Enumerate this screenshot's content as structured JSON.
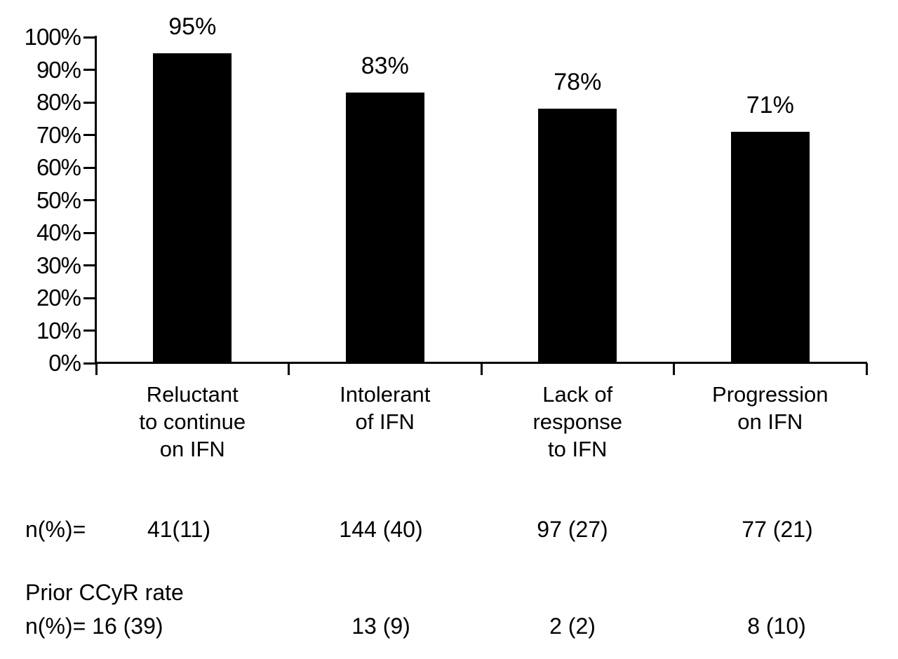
{
  "figure": {
    "background": "#ffffff",
    "bar_color": "#000000",
    "axis_color": "#000000",
    "text_color": "#000000"
  },
  "chart_data": {
    "type": "bar",
    "title": "",
    "xlabel": "",
    "ylabel": "",
    "categories": [
      "Reluctant to continue on IFN",
      "Intolerant of IFN",
      "Lack of response to IFN",
      "Progression on IFN"
    ],
    "category_lines": [
      [
        "Reluctant",
        "to continue",
        "on IFN"
      ],
      [
        "Intolerant",
        "of IFN"
      ],
      [
        "Lack of",
        "response",
        "to IFN"
      ],
      [
        "Progression",
        "on IFN"
      ]
    ],
    "values": [
      95,
      83,
      78,
      71
    ],
    "bar_labels": [
      "95%",
      "83%",
      "78%",
      "71%"
    ],
    "y_ticks": [
      "0%",
      "10%",
      "20%",
      "30%",
      "40%",
      "50%",
      "60%",
      "70%",
      "80%",
      "90%",
      "100%"
    ],
    "ylim": [
      0,
      100
    ],
    "grid": false,
    "legend": false,
    "annotation_rows": [
      {
        "label": "n(%)=",
        "values": [
          "41(11)",
          "144 (40)",
          "97 (27)",
          "77 (21)"
        ]
      },
      {
        "label_line1": "Prior CCyR rate",
        "label_line2": "n(%)=",
        "values": [
          "16 (39)",
          "13 (9)",
          "2 (2)",
          "8 (10)"
        ]
      }
    ]
  }
}
